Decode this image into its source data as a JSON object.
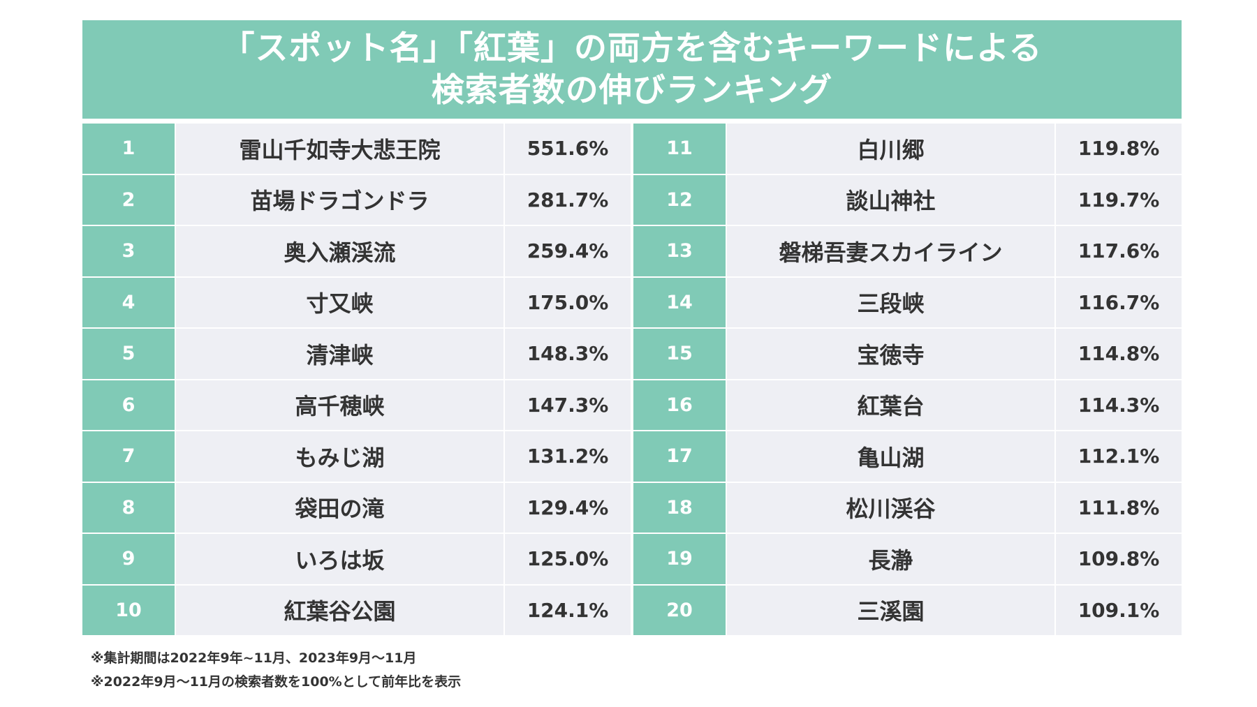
{
  "title": {
    "line1": "「スポット名」「紅葉」の両方を含むキーワードによる",
    "line2": "検索者数の伸びランキング"
  },
  "colors": {
    "accent": "#80cab6",
    "cell_background": "#eeeff4",
    "text": "#333333"
  },
  "rankings": [
    {
      "rank": "1",
      "name": "雷山千如寺大悲王院",
      "value": "551.6%"
    },
    {
      "rank": "2",
      "name": "苗場ドラゴンドラ",
      "value": "281.7%"
    },
    {
      "rank": "3",
      "name": "奥入瀬渓流",
      "value": "259.4%"
    },
    {
      "rank": "4",
      "name": "寸又峡",
      "value": "175.0%"
    },
    {
      "rank": "5",
      "name": "清津峡",
      "value": "148.3%"
    },
    {
      "rank": "6",
      "name": "高千穂峡",
      "value": "147.3%"
    },
    {
      "rank": "7",
      "name": "もみじ湖",
      "value": "131.2%"
    },
    {
      "rank": "8",
      "name": "袋田の滝",
      "value": "129.4%"
    },
    {
      "rank": "9",
      "name": "いろは坂",
      "value": "125.0%"
    },
    {
      "rank": "10",
      "name": "紅葉谷公園",
      "value": "124.1%"
    },
    {
      "rank": "11",
      "name": "白川郷",
      "value": "119.8%"
    },
    {
      "rank": "12",
      "name": "談山神社",
      "value": "119.7%"
    },
    {
      "rank": "13",
      "name": "磐梯吾妻スカイライン",
      "value": "117.6%"
    },
    {
      "rank": "14",
      "name": "三段峡",
      "value": "116.7%"
    },
    {
      "rank": "15",
      "name": "宝徳寺",
      "value": "114.8%"
    },
    {
      "rank": "16",
      "name": "紅葉台",
      "value": "114.3%"
    },
    {
      "rank": "17",
      "name": "亀山湖",
      "value": "112.1%"
    },
    {
      "rank": "18",
      "name": "松川渓谷",
      "value": "111.8%"
    },
    {
      "rank": "19",
      "name": "長瀞",
      "value": "109.8%"
    },
    {
      "rank": "20",
      "name": "三溪園",
      "value": "109.1%"
    }
  ],
  "footnotes": [
    "※集計期間は2022年9年~11月、2023年9月～11月",
    "※2022年9月～11月の検索者数を100%として前年比を表示"
  ]
}
